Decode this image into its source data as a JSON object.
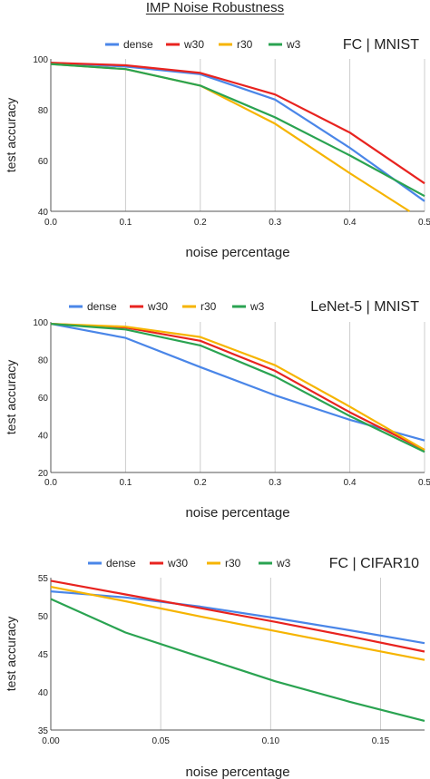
{
  "title": "IMP Noise Robustness",
  "colors": {
    "dense": "#4a86e8",
    "w30": "#e8231f",
    "r30": "#f6b400",
    "w3": "#2aa351",
    "grid": "#cccccc",
    "text": "#222222"
  },
  "chart_data": [
    {
      "type": "line",
      "title": "FC | MNIST",
      "xlabel": "noise percentage",
      "ylabel": "test accuracy",
      "xlim": [
        0,
        0.5
      ],
      "ylim": [
        40,
        100
      ],
      "xticks": [
        0,
        0.1,
        0.2,
        0.3,
        0.4,
        0.5
      ],
      "xtick_labels": [
        "0.0",
        "0.1",
        "0.2",
        "0.3",
        "0.4",
        "0.5"
      ],
      "yticks": [
        40,
        60,
        80,
        100
      ],
      "ytick_labels": [
        "40",
        "60",
        "80",
        "100"
      ],
      "grid": "vertical lines at x ticks",
      "legend": "top",
      "series": [
        {
          "name": "dense",
          "x": [
            0,
            0.1,
            0.2,
            0.3,
            0.4,
            0.5
          ],
          "y": [
            98.5,
            97,
            94,
            84,
            65,
            44
          ]
        },
        {
          "name": "w30",
          "x": [
            0,
            0.1,
            0.2,
            0.3,
            0.4,
            0.5
          ],
          "y": [
            98.5,
            97.5,
            94.5,
            86,
            71,
            51
          ]
        },
        {
          "name": "r30",
          "x": [
            0,
            0.1,
            0.2,
            0.3,
            0.4,
            0.48
          ],
          "y": [
            98,
            96,
            89.5,
            74.5,
            55,
            40
          ]
        },
        {
          "name": "w3",
          "x": [
            0,
            0.1,
            0.2,
            0.3,
            0.4,
            0.5
          ],
          "y": [
            98,
            96,
            89.5,
            77,
            62,
            46
          ]
        }
      ]
    },
    {
      "type": "line",
      "title": "LeNet-5 | MNIST",
      "xlabel": "noise percentage",
      "ylabel": "test accuracy",
      "xlim": [
        0,
        0.5
      ],
      "ylim": [
        20,
        100
      ],
      "xticks": [
        0,
        0.1,
        0.2,
        0.3,
        0.4,
        0.5
      ],
      "xtick_labels": [
        "0.0",
        "0.1",
        "0.2",
        "0.3",
        "0.4",
        "0.5"
      ],
      "yticks": [
        20,
        40,
        60,
        80,
        100
      ],
      "ytick_labels": [
        "20",
        "40",
        "60",
        "80",
        "100"
      ],
      "grid": "vertical lines at x ticks",
      "legend": "top",
      "series": [
        {
          "name": "dense",
          "x": [
            0,
            0.1,
            0.2,
            0.3,
            0.4,
            0.5
          ],
          "y": [
            99,
            91.5,
            76,
            61,
            48,
            37
          ]
        },
        {
          "name": "w30",
          "x": [
            0,
            0.1,
            0.2,
            0.3,
            0.4,
            0.5
          ],
          "y": [
            99,
            97,
            90,
            74,
            52,
            32
          ]
        },
        {
          "name": "r30",
          "x": [
            0,
            0.1,
            0.2,
            0.3,
            0.4,
            0.5
          ],
          "y": [
            99,
            97.5,
            92,
            77,
            55,
            32
          ]
        },
        {
          "name": "w3",
          "x": [
            0,
            0.1,
            0.2,
            0.3,
            0.4,
            0.5
          ],
          "y": [
            99,
            96,
            87.5,
            71,
            50,
            31
          ]
        }
      ]
    },
    {
      "type": "line",
      "title": "FC | CIFAR10",
      "xlabel": "noise percentage",
      "ylabel": "test accuracy",
      "xlim": [
        0,
        0.17
      ],
      "ylim": [
        35,
        55
      ],
      "xticks": [
        0,
        0.05,
        0.1,
        0.15
      ],
      "xtick_labels": [
        "0.00",
        "0.05",
        "0.10",
        "0.15"
      ],
      "yticks": [
        35,
        40,
        45,
        50,
        55
      ],
      "ytick_labels": [
        "35",
        "40",
        "45",
        "50",
        "55"
      ],
      "grid": "vertical lines at x ticks",
      "legend": "top",
      "series": [
        {
          "name": "dense",
          "x": [
            0,
            0.034,
            0.068,
            0.102,
            0.136,
            0.17
          ],
          "y": [
            53.2,
            52.4,
            51.2,
            49.7,
            48.1,
            46.4
          ]
        },
        {
          "name": "w30",
          "x": [
            0,
            0.034,
            0.068,
            0.102,
            0.136,
            0.17
          ],
          "y": [
            54.6,
            52.8,
            51.0,
            49.2,
            47.3,
            45.3
          ]
        },
        {
          "name": "r30",
          "x": [
            0,
            0.034,
            0.068,
            0.102,
            0.136,
            0.17
          ],
          "y": [
            53.8,
            51.9,
            49.9,
            48.0,
            46.1,
            44.2
          ]
        },
        {
          "name": "w3",
          "x": [
            0,
            0.034,
            0.068,
            0.102,
            0.136,
            0.17
          ],
          "y": [
            52.2,
            47.8,
            44.6,
            41.4,
            38.7,
            36.2
          ]
        }
      ]
    }
  ]
}
